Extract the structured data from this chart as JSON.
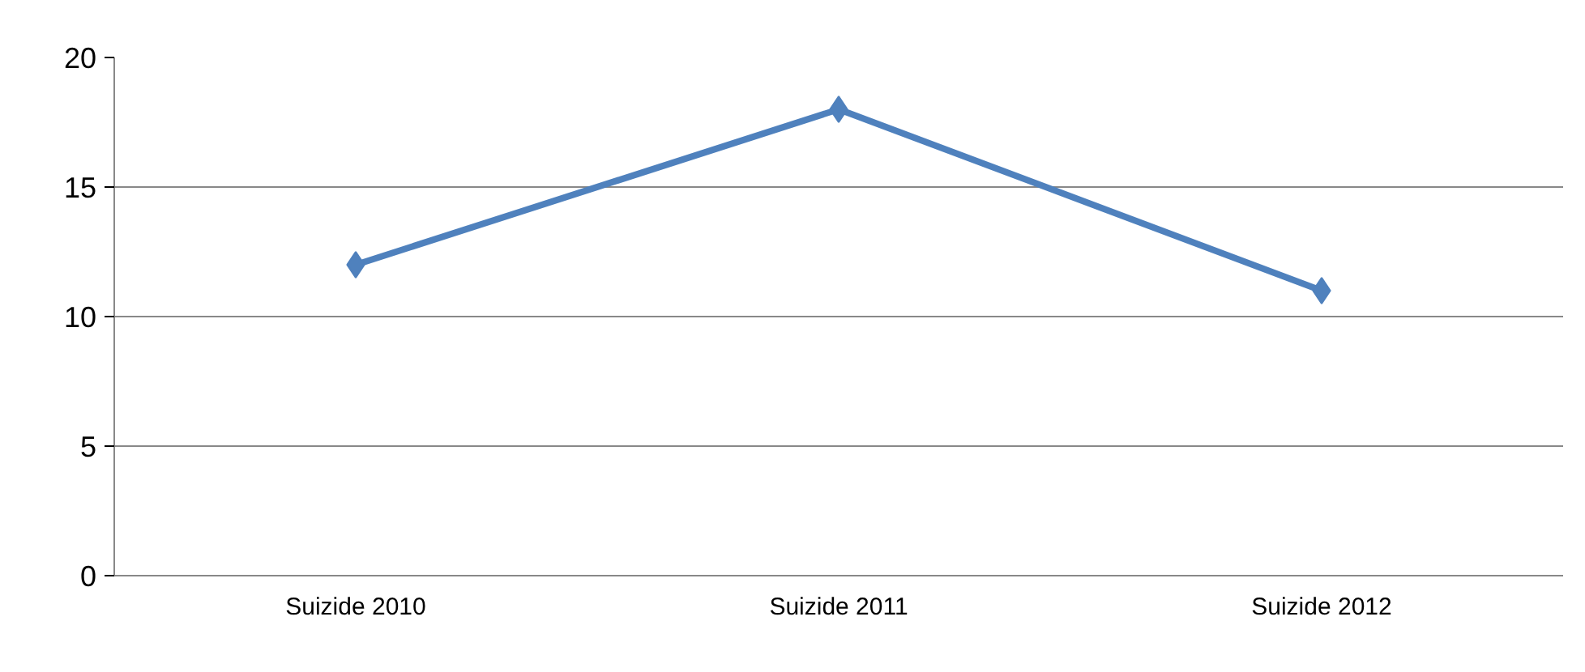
{
  "chart_data": {
    "type": "line",
    "categories": [
      "Suizide 2010",
      "Suizide 2011",
      "Suizide 2012"
    ],
    "series": [
      {
        "color": "#4f81bd",
        "values": [
          12,
          18,
          11
        ]
      }
    ],
    "ylim": [
      0,
      20
    ],
    "yticks": [
      0,
      5,
      10,
      15,
      20
    ],
    "grid": "y",
    "marker": "diamond",
    "line_style": "solid"
  }
}
